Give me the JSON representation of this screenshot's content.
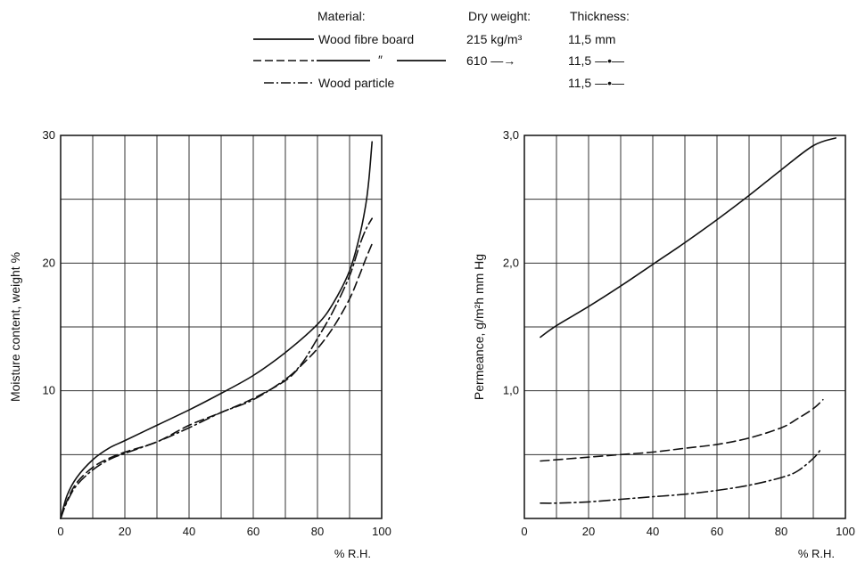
{
  "legend": {
    "headers": {
      "material": "Material:",
      "dry_weight": "Dry weight:",
      "thickness": "Thickness:"
    },
    "rows": [
      {
        "style": "solid",
        "material": "Wood fibre board",
        "dry_weight": "215 kg/m³",
        "thickness": "11,5 mm"
      },
      {
        "style": "dashed",
        "material": "″",
        "dry_weight": "610 —→",
        "thickness": "11,5 —•—"
      },
      {
        "style": "dashdot",
        "material": "Wood particle",
        "dry_weight": "",
        "thickness": "11,5 —•—"
      }
    ]
  },
  "chart_data": [
    {
      "type": "line",
      "title": "",
      "xlabel": "% R.H.",
      "ylabel": "Moisture content, weight %",
      "xlim": [
        0,
        100
      ],
      "ylim": [
        0,
        30
      ],
      "xticks": [
        0,
        20,
        40,
        60,
        80,
        100
      ],
      "xtick_labels": [
        "0",
        "20",
        "40",
        "60",
        "80",
        "100"
      ],
      "yticks": [
        10,
        20,
        30
      ],
      "ytick_labels": [
        "10",
        "20",
        "30"
      ],
      "x_grid_step": 10,
      "y_grid_step": 5,
      "grid": true,
      "series": [
        {
          "style": "solid",
          "points": [
            [
              0,
              0
            ],
            [
              2,
              1.8
            ],
            [
              5,
              3.2
            ],
            [
              10,
              4.6
            ],
            [
              15,
              5.5
            ],
            [
              20,
              6.1
            ],
            [
              30,
              7.3
            ],
            [
              40,
              8.5
            ],
            [
              50,
              9.8
            ],
            [
              60,
              11.2
            ],
            [
              70,
              13
            ],
            [
              80,
              15.2
            ],
            [
              85,
              16.9
            ],
            [
              90,
              19.4
            ],
            [
              93,
              22
            ],
            [
              95,
              24.5
            ],
            [
              96,
              26.5
            ],
            [
              97,
              29.5
            ]
          ]
        },
        {
          "style": "dashed",
          "points": [
            [
              0,
              0
            ],
            [
              2,
              1.4
            ],
            [
              5,
              2.8
            ],
            [
              10,
              4
            ],
            [
              15,
              4.7
            ],
            [
              20,
              5.2
            ],
            [
              30,
              6
            ],
            [
              40,
              7.3
            ],
            [
              50,
              8.3
            ],
            [
              60,
              9.4
            ],
            [
              70,
              10.8
            ],
            [
              75,
              12
            ],
            [
              80,
              13.3
            ],
            [
              85,
              15
            ],
            [
              90,
              17.2
            ],
            [
              93,
              19
            ],
            [
              95,
              20.3
            ],
            [
              97,
              21.5
            ]
          ]
        },
        {
          "style": "dashdot",
          "points": [
            [
              0,
              0
            ],
            [
              2,
              1.3
            ],
            [
              5,
              2.6
            ],
            [
              10,
              3.8
            ],
            [
              15,
              4.6
            ],
            [
              20,
              5.1
            ],
            [
              30,
              6
            ],
            [
              40,
              7.1
            ],
            [
              50,
              8.3
            ],
            [
              60,
              9.3
            ],
            [
              70,
              10.9
            ],
            [
              75,
              12.1
            ],
            [
              80,
              14.1
            ],
            [
              85,
              16.3
            ],
            [
              90,
              19
            ],
            [
              93,
              21.3
            ],
            [
              95,
              22.6
            ],
            [
              97,
              23.5
            ]
          ]
        }
      ]
    },
    {
      "type": "line",
      "title": "",
      "xlabel": "% R.H.",
      "ylabel": "Permeance, g/m²h mm Hg",
      "xlim": [
        0,
        100
      ],
      "ylim": [
        0,
        3
      ],
      "xticks": [
        0,
        20,
        40,
        60,
        80,
        100
      ],
      "xtick_labels": [
        "0",
        "20",
        "40",
        "60",
        "80",
        "100"
      ],
      "yticks": [
        1,
        2,
        3
      ],
      "ytick_labels": [
        "1,0",
        "2,0",
        "3,0"
      ],
      "x_grid_step": 10,
      "y_grid_step": 0.5,
      "grid": true,
      "series": [
        {
          "style": "solid",
          "points": [
            [
              5,
              1.42
            ],
            [
              10,
              1.51
            ],
            [
              20,
              1.66
            ],
            [
              30,
              1.82
            ],
            [
              40,
              1.99
            ],
            [
              50,
              2.16
            ],
            [
              60,
              2.34
            ],
            [
              70,
              2.53
            ],
            [
              80,
              2.73
            ],
            [
              90,
              2.92
            ],
            [
              97,
              2.98
            ]
          ]
        },
        {
          "style": "dashed",
          "points": [
            [
              5,
              0.45
            ],
            [
              10,
              0.46
            ],
            [
              20,
              0.48
            ],
            [
              30,
              0.5
            ],
            [
              40,
              0.52
            ],
            [
              50,
              0.55
            ],
            [
              60,
              0.58
            ],
            [
              70,
              0.63
            ],
            [
              80,
              0.71
            ],
            [
              85,
              0.78
            ],
            [
              90,
              0.86
            ],
            [
              93,
              0.93
            ]
          ]
        },
        {
          "style": "dashdot",
          "points": [
            [
              5,
              0.12
            ],
            [
              10,
              0.12
            ],
            [
              20,
              0.13
            ],
            [
              30,
              0.15
            ],
            [
              40,
              0.17
            ],
            [
              50,
              0.19
            ],
            [
              60,
              0.22
            ],
            [
              70,
              0.26
            ],
            [
              80,
              0.32
            ],
            [
              85,
              0.37
            ],
            [
              90,
              0.47
            ],
            [
              92,
              0.53
            ]
          ]
        }
      ]
    }
  ]
}
